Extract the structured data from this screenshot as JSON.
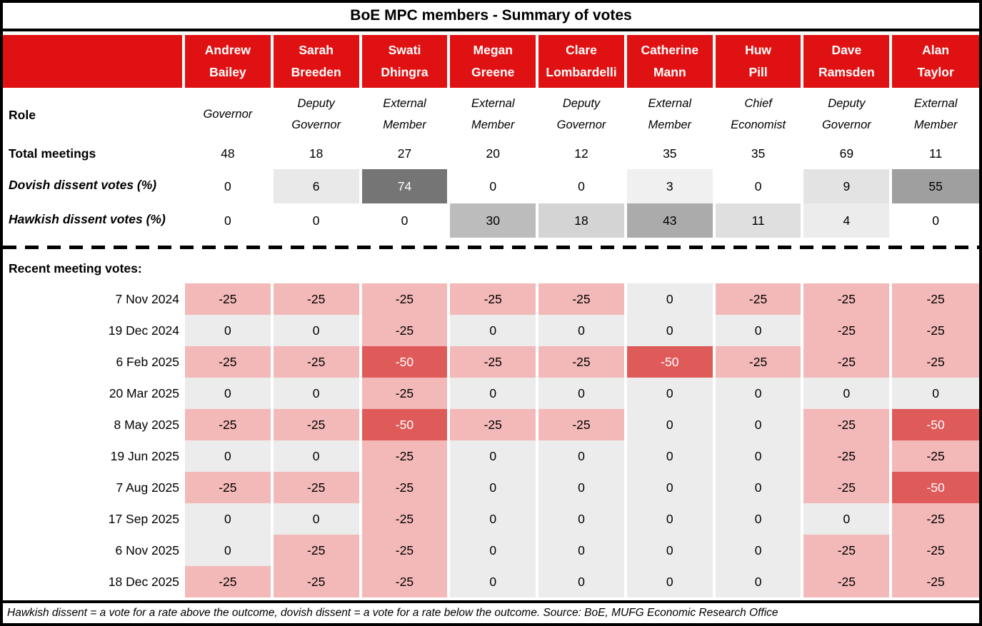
{
  "title": "BoE MPC members - Summary of votes",
  "header": {
    "members": [
      {
        "line1": "Andrew",
        "line2": "Bailey"
      },
      {
        "line1": "Sarah",
        "line2": "Breeden"
      },
      {
        "line1": "Swati",
        "line2": "Dhingra"
      },
      {
        "line1": "Megan",
        "line2": "Greene"
      },
      {
        "line1": "Clare",
        "line2": "Lombardelli"
      },
      {
        "line1": "Catherine",
        "line2": "Mann"
      },
      {
        "line1": "Huw",
        "line2": "Pill"
      },
      {
        "line1": "Dave",
        "line2": "Ramsden"
      },
      {
        "line1": "Alan",
        "line2": "Taylor"
      }
    ]
  },
  "labels": {
    "role": "Role",
    "total_meetings": "Total meetings",
    "dovish": "Dovish dissent votes (%)",
    "hawkish": "Hawkish dissent votes (%)",
    "recent": "Recent meeting votes:"
  },
  "roles": [
    "Governor",
    "Deputy Governor",
    "External Member",
    "External Member",
    "Deputy Governor",
    "External Member",
    "Chief Economist",
    "Deputy Governor",
    "External Member"
  ],
  "stats": {
    "total_meetings": [
      48,
      18,
      27,
      20,
      12,
      35,
      35,
      69,
      11
    ],
    "dovish_dissent_pct": [
      0,
      6,
      74,
      0,
      0,
      3,
      0,
      9,
      55
    ],
    "hawkish_dissent_pct": [
      0,
      0,
      0,
      30,
      18,
      43,
      11,
      4,
      0
    ]
  },
  "meetings": [
    {
      "date": "7 Nov 2024",
      "votes": [
        -25,
        -25,
        -25,
        -25,
        -25,
        0,
        -25,
        -25,
        -25
      ]
    },
    {
      "date": "19 Dec 2024",
      "votes": [
        0,
        0,
        -25,
        0,
        0,
        0,
        0,
        -25,
        -25
      ]
    },
    {
      "date": "6 Feb 2025",
      "votes": [
        -25,
        -25,
        -50,
        -25,
        -25,
        -50,
        -25,
        -25,
        -25
      ]
    },
    {
      "date": "20 Mar 2025",
      "votes": [
        0,
        0,
        -25,
        0,
        0,
        0,
        0,
        0,
        0
      ]
    },
    {
      "date": "8 May 2025",
      "votes": [
        -25,
        -25,
        -50,
        -25,
        -25,
        0,
        0,
        -25,
        -50
      ]
    },
    {
      "date": "19 Jun 2025",
      "votes": [
        0,
        0,
        -25,
        0,
        0,
        0,
        0,
        -25,
        -25
      ]
    },
    {
      "date": "7 Aug 2025",
      "votes": [
        -25,
        -25,
        -25,
        0,
        0,
        0,
        0,
        -25,
        -50
      ]
    },
    {
      "date": "17 Sep 2025",
      "votes": [
        0,
        0,
        -25,
        0,
        0,
        0,
        0,
        0,
        -25
      ]
    },
    {
      "date": "6 Nov 2025",
      "votes": [
        0,
        -25,
        -25,
        0,
        0,
        0,
        0,
        -25,
        -25
      ]
    },
    {
      "date": "18 Dec 2025",
      "votes": [
        -25,
        -25,
        -25,
        0,
        0,
        0,
        0,
        -25,
        -25
      ]
    }
  ],
  "footnote": "Hawkish dissent = a vote for a rate above the outcome, dovish dissent = a vote for a rate below the outcome. Source: BoE, MUFG Economic Research Office",
  "colors": {
    "header_red": "#e01112",
    "vote_hold_bg": "#ececec",
    "vote_cut25_bg": "#f3b9b8",
    "vote_cut50_bg": "#de5b5a",
    "white_text": "#ffffff",
    "dissent_shades": {
      "0": "",
      "3": "#f0f0f0",
      "4": "#ececec",
      "6": "#e9e9e9",
      "9": "#e3e3e3",
      "11": "#dfdfdf",
      "18": "#d4d4d4",
      "30": "#bcbcbc",
      "43": "#ababab",
      "55": "#9f9f9f",
      "74": "#757575"
    }
  },
  "chart_data": {
    "type": "table",
    "title": "BoE MPC members - Summary of votes",
    "columns": [
      "Andrew Bailey",
      "Sarah Breeden",
      "Swati Dhingra",
      "Megan Greene",
      "Clare Lombardelli",
      "Catherine Mann",
      "Huw Pill",
      "Dave Ramsden",
      "Alan Taylor"
    ],
    "rows": [
      {
        "label": "Role",
        "values": [
          "Governor",
          "Deputy Governor",
          "External Member",
          "External Member",
          "Deputy Governor",
          "External Member",
          "Chief Economist",
          "Deputy Governor",
          "External Member"
        ]
      },
      {
        "label": "Total meetings",
        "values": [
          48,
          18,
          27,
          20,
          12,
          35,
          35,
          69,
          11
        ]
      },
      {
        "label": "Dovish dissent votes (%)",
        "values": [
          0,
          6,
          74,
          0,
          0,
          3,
          0,
          9,
          55
        ]
      },
      {
        "label": "Hawkish dissent votes (%)",
        "values": [
          0,
          0,
          0,
          30,
          18,
          43,
          11,
          4,
          0
        ]
      },
      {
        "label": "7 Nov 2024",
        "values": [
          -25,
          -25,
          -25,
          -25,
          -25,
          0,
          -25,
          -25,
          -25
        ]
      },
      {
        "label": "19 Dec 2024",
        "values": [
          0,
          0,
          -25,
          0,
          0,
          0,
          0,
          -25,
          -25
        ]
      },
      {
        "label": "6 Feb 2025",
        "values": [
          -25,
          -25,
          -50,
          -25,
          -25,
          -50,
          -25,
          -25,
          -25
        ]
      },
      {
        "label": "20 Mar 2025",
        "values": [
          0,
          0,
          -25,
          0,
          0,
          0,
          0,
          0,
          0
        ]
      },
      {
        "label": "8 May 2025",
        "values": [
          -25,
          -25,
          -50,
          -25,
          -25,
          0,
          0,
          -25,
          -50
        ]
      },
      {
        "label": "19 Jun 2025",
        "values": [
          0,
          0,
          -25,
          0,
          0,
          0,
          0,
          -25,
          -25
        ]
      },
      {
        "label": "7 Aug 2025",
        "values": [
          -25,
          -25,
          -25,
          0,
          0,
          0,
          0,
          -25,
          -50
        ]
      },
      {
        "label": "17 Sep 2025",
        "values": [
          0,
          0,
          -25,
          0,
          0,
          0,
          0,
          0,
          -25
        ]
      },
      {
        "label": "6 Nov 2025",
        "values": [
          0,
          -25,
          -25,
          0,
          0,
          0,
          0,
          -25,
          -25
        ]
      },
      {
        "label": "18 Dec 2025",
        "values": [
          -25,
          -25,
          -25,
          0,
          0,
          0,
          0,
          -25,
          -25
        ]
      }
    ],
    "footnote": "Hawkish dissent = a vote for a rate above the outcome, dovish dissent = a vote for a rate below the outcome. Source: BoE, MUFG Economic Research Office"
  }
}
